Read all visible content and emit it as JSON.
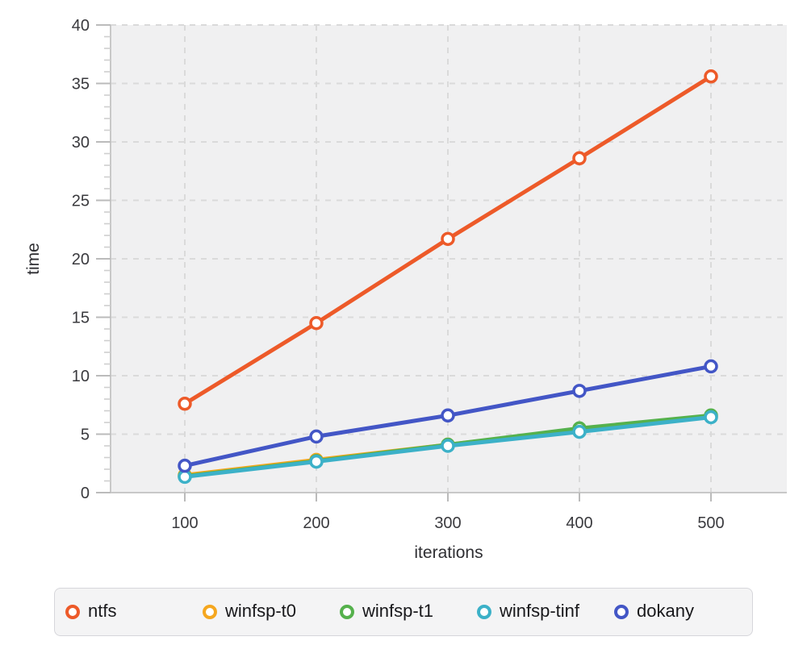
{
  "chart_data": {
    "type": "line",
    "title": "",
    "xlabel": "iterations",
    "ylabel": "time",
    "x": [
      100,
      200,
      300,
      400,
      500
    ],
    "x_ticks": [
      "100",
      "200",
      "300",
      "400",
      "500"
    ],
    "y_ticks": [
      0,
      5,
      10,
      15,
      20,
      25,
      30,
      35,
      40
    ],
    "ylim": [
      0,
      40
    ],
    "y_minor_step": 1,
    "grid": "dashed",
    "legend_position": "bottom",
    "plot_bg": "#f0f0f1",
    "grid_color": "#dadada",
    "axis_color": "#c8c8c8",
    "tick_label_color": "#3a3a3e",
    "series": [
      {
        "name": "ntfs",
        "color": "#ed5a29",
        "values": [
          7.6,
          14.5,
          21.7,
          28.6,
          35.6
        ]
      },
      {
        "name": "winfsp-t0",
        "color": "#f5a71f",
        "values": [
          1.5,
          2.8,
          4.1,
          5.4,
          6.5
        ]
      },
      {
        "name": "winfsp-t1",
        "color": "#55b14c",
        "values": [
          1.4,
          2.7,
          4.1,
          5.5,
          6.6
        ]
      },
      {
        "name": "winfsp-tinf",
        "color": "#3cb1c8",
        "values": [
          1.35,
          2.65,
          4.0,
          5.2,
          6.45
        ]
      },
      {
        "name": "dokany",
        "color": "#4356c6",
        "values": [
          2.3,
          4.8,
          6.6,
          8.7,
          10.8
        ]
      }
    ]
  }
}
